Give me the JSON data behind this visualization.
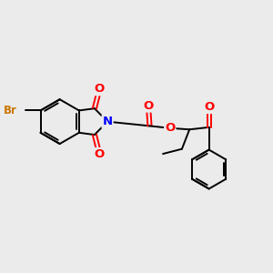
{
  "bg_color": "#ebebeb",
  "bond_color": "#000000",
  "bond_width": 1.4,
  "atom_colors": {
    "O": "#ff0000",
    "N": "#0000ff",
    "Br": "#cc7700",
    "C": "#000000"
  },
  "font_size": 8.5,
  "fig_size": [
    3.0,
    3.0
  ],
  "dpi": 100
}
